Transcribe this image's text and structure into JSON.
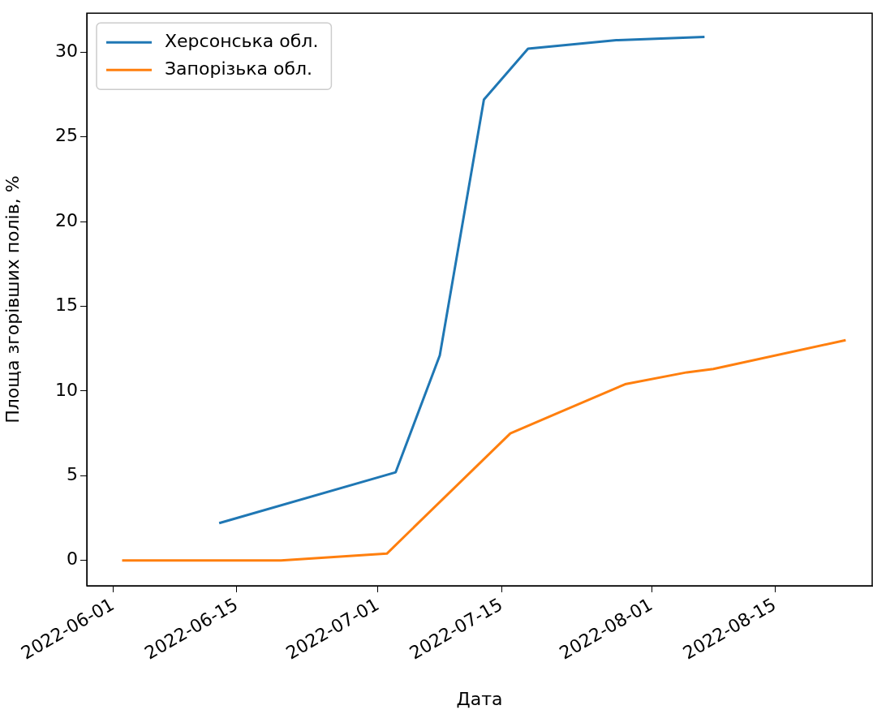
{
  "chart_data": {
    "type": "line",
    "xlabel": "Дата",
    "ylabel": "Площа згорівших полів, %",
    "series": [
      {
        "name": "Херсонська обл.",
        "color": "#1f77b4",
        "x": [
          "2022-06-13",
          "2022-07-03",
          "2022-07-08",
          "2022-07-13",
          "2022-07-18",
          "2022-07-28",
          "2022-08-07"
        ],
        "values": [
          2.2,
          5.2,
          12.1,
          27.2,
          30.2,
          30.7,
          30.9
        ]
      },
      {
        "name": "Запорізька обл.",
        "color": "#ff7f0e",
        "x": [
          "2022-06-02",
          "2022-06-20",
          "2022-07-02",
          "2022-07-16",
          "2022-07-29",
          "2022-08-05",
          "2022-08-08",
          "2022-08-23"
        ],
        "values": [
          0,
          0,
          0.4,
          7.5,
          10.4,
          11.1,
          11.3,
          13.0
        ]
      }
    ],
    "xlim": [
      "2022-05-29",
      "2022-08-26"
    ],
    "xticks": [
      "2022-06-01",
      "2022-06-15",
      "2022-07-01",
      "2022-07-15",
      "2022-08-01",
      "2022-08-15"
    ],
    "ylim": [
      -1.5,
      32.3
    ],
    "yticks": [
      0,
      5,
      10,
      15,
      20,
      25,
      30
    ],
    "grid": false,
    "legend": "top left",
    "marker": "none",
    "line_style": "solid"
  }
}
